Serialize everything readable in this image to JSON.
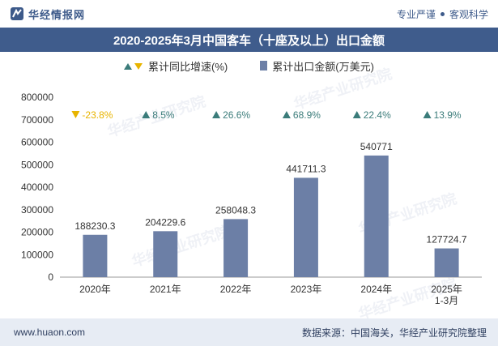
{
  "header": {
    "brand": "华经情报网",
    "tagline_left": "专业严谨",
    "tagline_right": "客观科学"
  },
  "title": "2020-2025年3月中国客车（十座及以上）出口金额",
  "legend": {
    "growth": "累计同比增速(%)",
    "export": "累计出口金额(万美元)"
  },
  "watermarks": [
    "华经产业研究院",
    "www.huaon.com"
  ],
  "footer": {
    "url": "www.huaon.com",
    "source": "数据来源：中国海关，华经产业研究院整理"
  },
  "colors": {
    "bar": "#6c7fa6",
    "up_marker": "#3b7c7a",
    "down_marker": "#e8b400",
    "down_text": "#e8b400",
    "title_bg": "#3f5c8c",
    "footer_bg": "#e7ecf4"
  },
  "chart_data": {
    "type": "bar",
    "categories": [
      "2020年",
      "2021年",
      "2022年",
      "2023年",
      "2024年",
      "2025年\n1-3月"
    ],
    "series": [
      {
        "name": "累计出口金额(万美元)",
        "values": [
          188230.3,
          204229.6,
          258048.3,
          441711.3,
          540771,
          127724.7
        ],
        "labels": [
          "188230.3",
          "204229.6",
          "258048.3",
          "441711.3",
          "540771",
          "127724.7"
        ]
      },
      {
        "name": "累计同比增速(%)",
        "values": [
          -23.8,
          8.5,
          26.6,
          68.9,
          22.4,
          13.9
        ],
        "labels": [
          "-23.8%",
          "8.5%",
          "26.6%",
          "68.9%",
          "22.4%",
          "13.9%"
        ]
      }
    ],
    "yticks": [
      "0",
      "100000",
      "200000",
      "300000",
      "400000",
      "500000",
      "600000",
      "700000",
      "800000"
    ],
    "ylim": [
      0,
      800000
    ]
  }
}
